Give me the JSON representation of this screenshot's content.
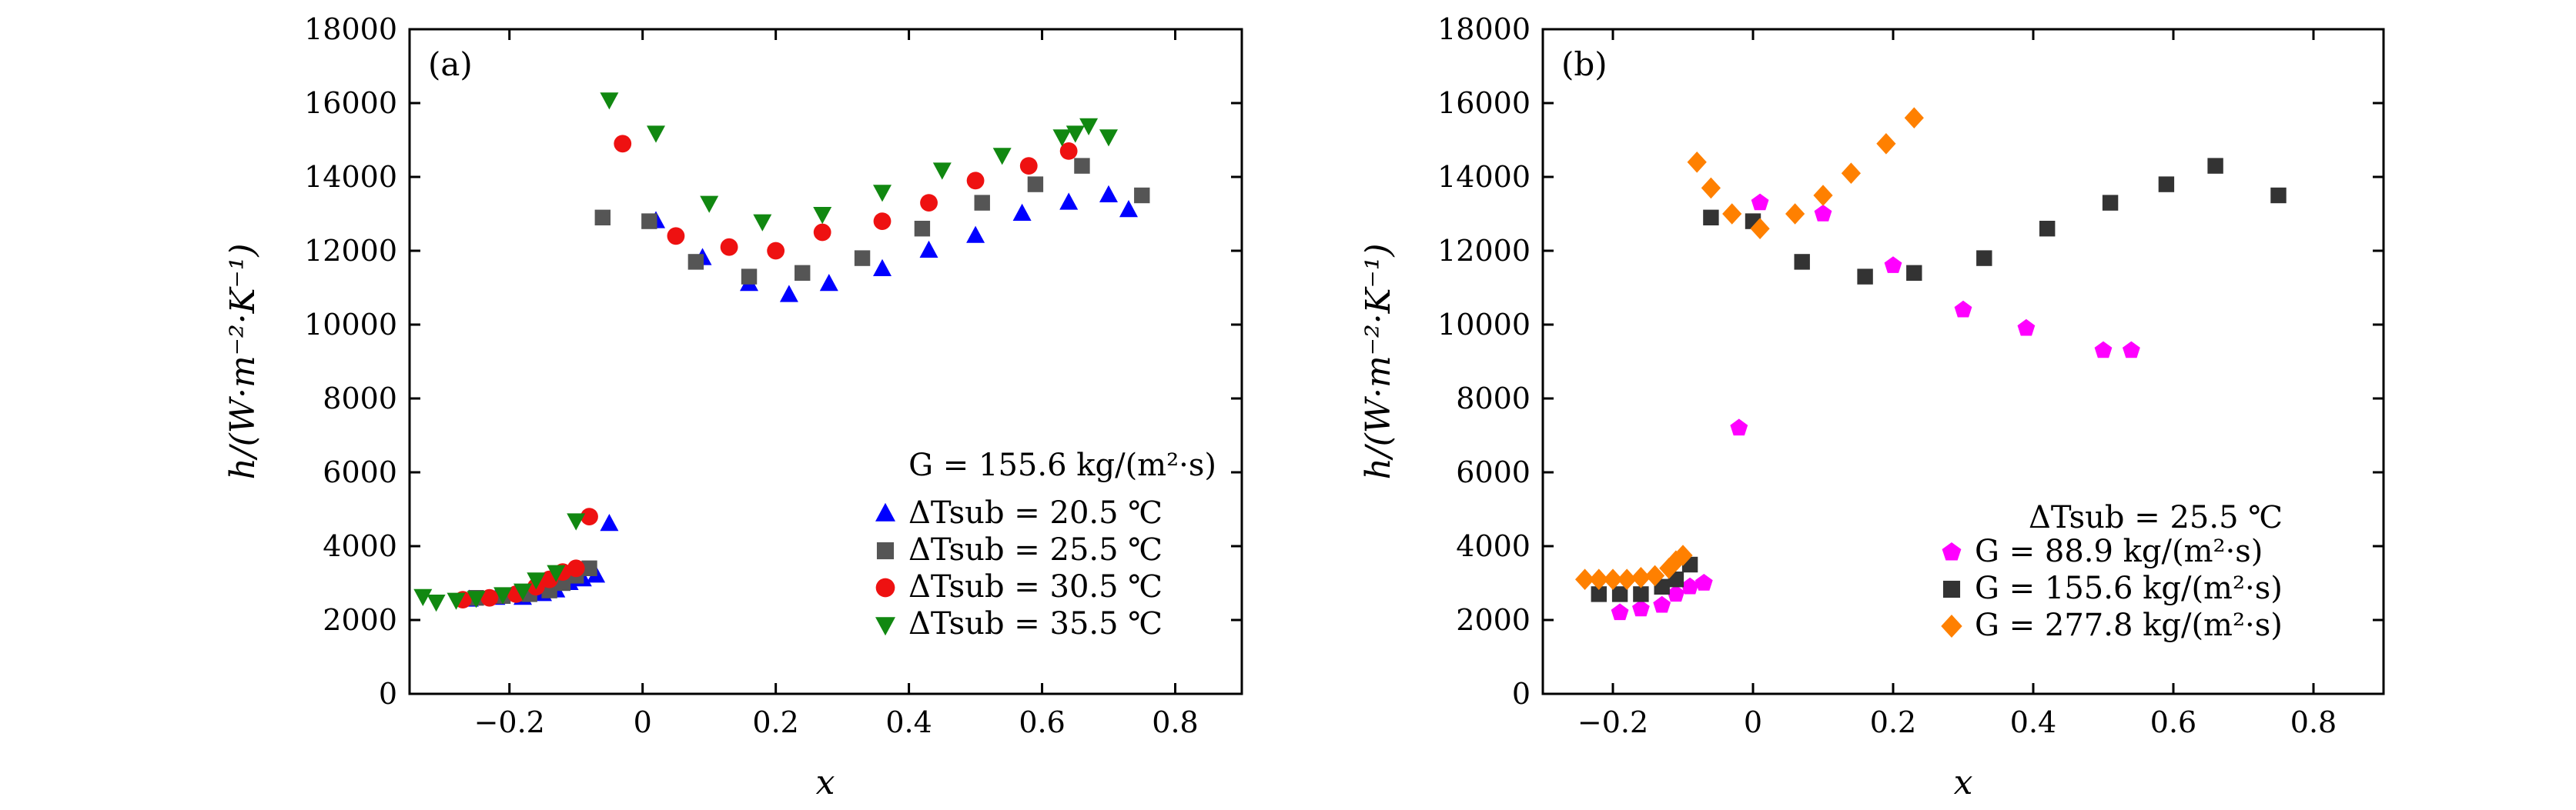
{
  "chart_data": [
    {
      "type": "scatter",
      "panel_label": "(a)",
      "xlabel": "x",
      "ylabel": "h/(W·m⁻²·K⁻¹)",
      "xlim": [
        -0.35,
        0.9
      ],
      "ylim": [
        0,
        18000
      ],
      "xticks": [
        "−0.2",
        "0",
        "0.2",
        "0.4",
        "0.6",
        "0.8"
      ],
      "xtick_values": [
        -0.2,
        0,
        0.2,
        0.4,
        0.6,
        0.8
      ],
      "yticks": [
        "0",
        "2000",
        "4000",
        "6000",
        "8000",
        "10000",
        "12000",
        "14000",
        "16000",
        "18000"
      ],
      "ytick_values": [
        0,
        2000,
        4000,
        6000,
        8000,
        10000,
        12000,
        14000,
        16000,
        18000
      ],
      "legend_title": "G = 155.6 kg/(m²·s)",
      "series": [
        {
          "name": "ΔTsub = 20.5 ℃",
          "marker": "triangle-up",
          "color": "#0000ff",
          "x": [
            -0.26,
            -0.22,
            -0.18,
            -0.15,
            -0.13,
            -0.11,
            -0.09,
            -0.07,
            -0.05,
            0.02,
            0.09,
            0.16,
            0.22,
            0.28,
            0.36,
            0.43,
            0.5,
            0.57,
            0.64,
            0.7,
            0.73
          ],
          "y": [
            2550,
            2600,
            2600,
            2700,
            2800,
            3000,
            3100,
            3200,
            4600,
            12800,
            11800,
            11100,
            10800,
            11100,
            11500,
            12000,
            12400,
            13000,
            13300,
            13500,
            13100
          ]
        },
        {
          "name": "ΔTsub = 25.5 ℃",
          "marker": "square",
          "color": "#555555",
          "x": [
            -0.25,
            -0.21,
            -0.17,
            -0.14,
            -0.12,
            -0.1,
            -0.08,
            -0.06,
            0.01,
            0.08,
            0.16,
            0.24,
            0.33,
            0.42,
            0.51,
            0.59,
            0.66,
            0.75
          ],
          "y": [
            2600,
            2650,
            2700,
            2800,
            3000,
            3200,
            3400,
            12900,
            12800,
            11700,
            11300,
            11400,
            11800,
            12600,
            13300,
            13800,
            14300,
            13500
          ]
        },
        {
          "name": "ΔTsub = 30.5 ℃",
          "marker": "circle",
          "color": "#ee1111",
          "x": [
            -0.27,
            -0.23,
            -0.19,
            -0.16,
            -0.14,
            -0.12,
            -0.1,
            -0.08,
            -0.03,
            0.05,
            0.13,
            0.2,
            0.27,
            0.36,
            0.43,
            0.5,
            0.58,
            0.64
          ],
          "y": [
            2550,
            2600,
            2700,
            2900,
            3100,
            3300,
            3400,
            4800,
            14900,
            12400,
            12100,
            12000,
            12500,
            12800,
            13300,
            13900,
            14300,
            14700
          ]
        },
        {
          "name": "ΔTsub = 35.5 ℃",
          "marker": "triangle-down",
          "color": "#118811",
          "x": [
            -0.33,
            -0.31,
            -0.28,
            -0.25,
            -0.21,
            -0.18,
            -0.16,
            -0.13,
            -0.1,
            -0.05,
            0.02,
            0.1,
            0.18,
            0.27,
            0.36,
            0.45,
            0.54,
            0.63,
            0.65,
            0.67,
            0.7
          ],
          "y": [
            2650,
            2500,
            2550,
            2600,
            2700,
            2800,
            3100,
            3300,
            4700,
            16100,
            15200,
            13300,
            12800,
            13000,
            13600,
            14200,
            14600,
            15100,
            15200,
            15400,
            15100
          ]
        }
      ]
    },
    {
      "type": "scatter",
      "panel_label": "(b)",
      "xlabel": "x",
      "ylabel": "h/(W·m⁻²·K⁻¹)",
      "xlim": [
        -0.3,
        0.9
      ],
      "ylim": [
        0,
        18000
      ],
      "xticks": [
        "−0.2",
        "0",
        "0.2",
        "0.4",
        "0.6",
        "0.8"
      ],
      "xtick_values": [
        -0.2,
        0,
        0.2,
        0.4,
        0.6,
        0.8
      ],
      "yticks": [
        "0",
        "2000",
        "4000",
        "6000",
        "8000",
        "10000",
        "12000",
        "14000",
        "16000",
        "18000"
      ],
      "ytick_values": [
        0,
        2000,
        4000,
        6000,
        8000,
        10000,
        12000,
        14000,
        16000,
        18000
      ],
      "legend_title": "ΔTsub = 25.5 ℃",
      "series": [
        {
          "name": "G = 88.9 kg/(m²·s)",
          "marker": "pentagon",
          "color": "#ff00ff",
          "x": [
            -0.19,
            -0.16,
            -0.13,
            -0.11,
            -0.09,
            -0.07,
            -0.02,
            0.01,
            0.1,
            0.2,
            0.3,
            0.39,
            0.5,
            0.54
          ],
          "y": [
            2200,
            2300,
            2400,
            2700,
            2900,
            3000,
            7200,
            13300,
            13000,
            11600,
            10400,
            9900,
            9300,
            9300
          ]
        },
        {
          "name": "G = 155.6 kg/(m²·s)",
          "marker": "square",
          "color": "#333333",
          "x": [
            -0.22,
            -0.19,
            -0.16,
            -0.13,
            -0.11,
            -0.09,
            -0.06,
            0.0,
            0.07,
            0.16,
            0.23,
            0.33,
            0.42,
            0.51,
            0.59,
            0.66,
            0.75
          ],
          "y": [
            2700,
            2700,
            2700,
            2900,
            3100,
            3500,
            12900,
            12800,
            11700,
            11300,
            11400,
            11800,
            12600,
            13300,
            13800,
            14300,
            13500
          ]
        },
        {
          "name": "G = 277.8 kg/(m²·s)",
          "marker": "diamond",
          "color": "#ff8000",
          "x": [
            -0.24,
            -0.22,
            -0.2,
            -0.18,
            -0.16,
            -0.14,
            -0.12,
            -0.11,
            -0.1,
            -0.08,
            -0.06,
            -0.03,
            0.01,
            0.06,
            0.1,
            0.14,
            0.19,
            0.23
          ],
          "y": [
            3100,
            3100,
            3100,
            3100,
            3150,
            3200,
            3400,
            3600,
            3750,
            14400,
            13700,
            13000,
            12600,
            13000,
            13500,
            14100,
            14900,
            15600
          ]
        }
      ]
    }
  ]
}
